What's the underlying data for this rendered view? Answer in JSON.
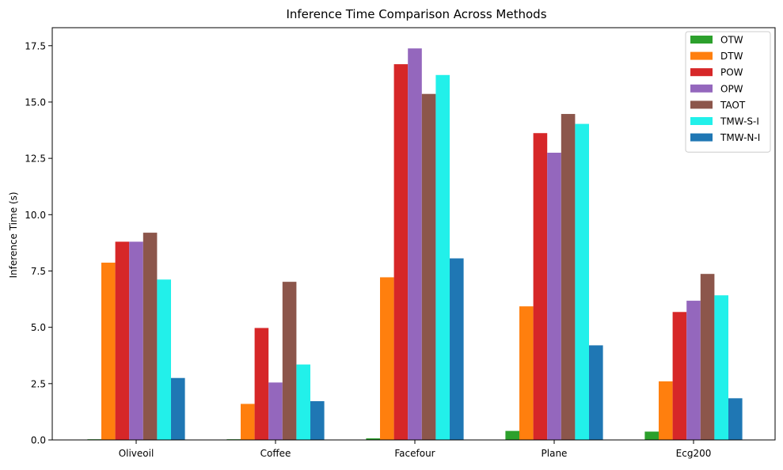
{
  "chart_data": {
    "type": "bar",
    "title": "Inference Time Comparison Across Methods",
    "xlabel": "",
    "ylabel": "Inference Time (s)",
    "categories": [
      "Oliveoil",
      "Coffee",
      "Facefour",
      "Plane",
      "Ecg200"
    ],
    "ylim": [
      0,
      18.3
    ],
    "yticks": [
      "0.0",
      "2.5",
      "5.0",
      "7.5",
      "10.0",
      "12.5",
      "15.0",
      "17.5"
    ],
    "legend_position": "top-right",
    "grid": false,
    "series": [
      {
        "name": "OTW",
        "color": "#2ca02c",
        "values": [
          0.03,
          0.03,
          0.07,
          0.4,
          0.37
        ]
      },
      {
        "name": "DTW",
        "color": "#ff7f0e",
        "values": [
          7.87,
          1.6,
          7.22,
          5.93,
          2.6
        ]
      },
      {
        "name": "POW",
        "color": "#d62728",
        "values": [
          8.8,
          4.97,
          16.68,
          13.62,
          5.68
        ]
      },
      {
        "name": "OPW",
        "color": "#9467bd",
        "values": [
          8.8,
          2.55,
          17.38,
          12.75,
          6.18
        ]
      },
      {
        "name": "TAOT",
        "color": "#8c564b",
        "values": [
          9.2,
          7.02,
          15.36,
          14.47,
          7.37
        ]
      },
      {
        "name": "TMW-S-I",
        "color": "#22f0ea",
        "values": [
          7.12,
          3.35,
          16.2,
          14.03,
          6.42
        ]
      },
      {
        "name": "TMW-N-I",
        "color": "#1f77b4",
        "values": [
          2.75,
          1.72,
          8.06,
          4.2,
          1.85
        ]
      }
    ]
  }
}
